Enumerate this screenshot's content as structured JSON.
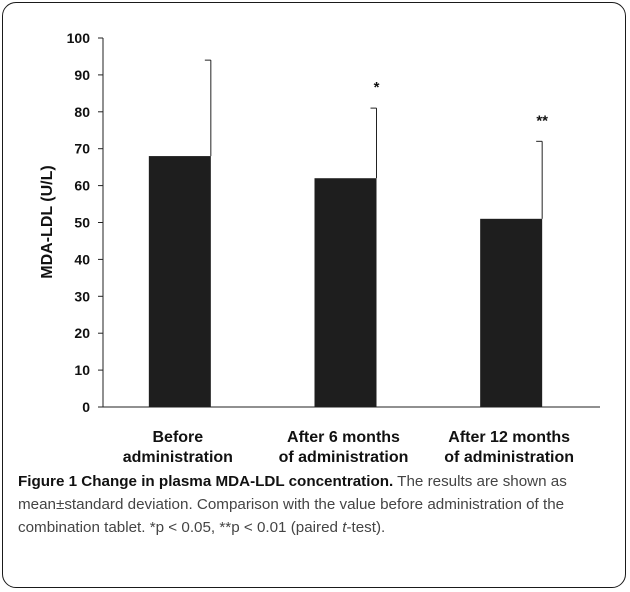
{
  "chart_data": {
    "type": "bar",
    "categories": [
      [
        "Before",
        "administration"
      ],
      [
        "After 6 months",
        "of administration"
      ],
      [
        "After 12 months",
        "of administration"
      ]
    ],
    "values": [
      68,
      62,
      51
    ],
    "error_upper": [
      94,
      81,
      72
    ],
    "significance": [
      "",
      "*",
      "**"
    ],
    "ylabel": "MDA-LDL (U/L)",
    "ylim": [
      0,
      100
    ],
    "yticks": [
      0,
      10,
      20,
      30,
      40,
      50,
      60,
      70,
      80,
      90,
      100
    ],
    "bar_color": "#1e1e1e",
    "grid": false
  },
  "caption": {
    "title": "Figure 1 Change in plasma MDA-LDL concentration.",
    "text_1": " The results are shown as mean±standard deviation. Comparison with the value before administration of the combination tablet. *p < 0.05, **p < 0.01 (paired ",
    "italic": "t",
    "text_2": "-test)."
  }
}
